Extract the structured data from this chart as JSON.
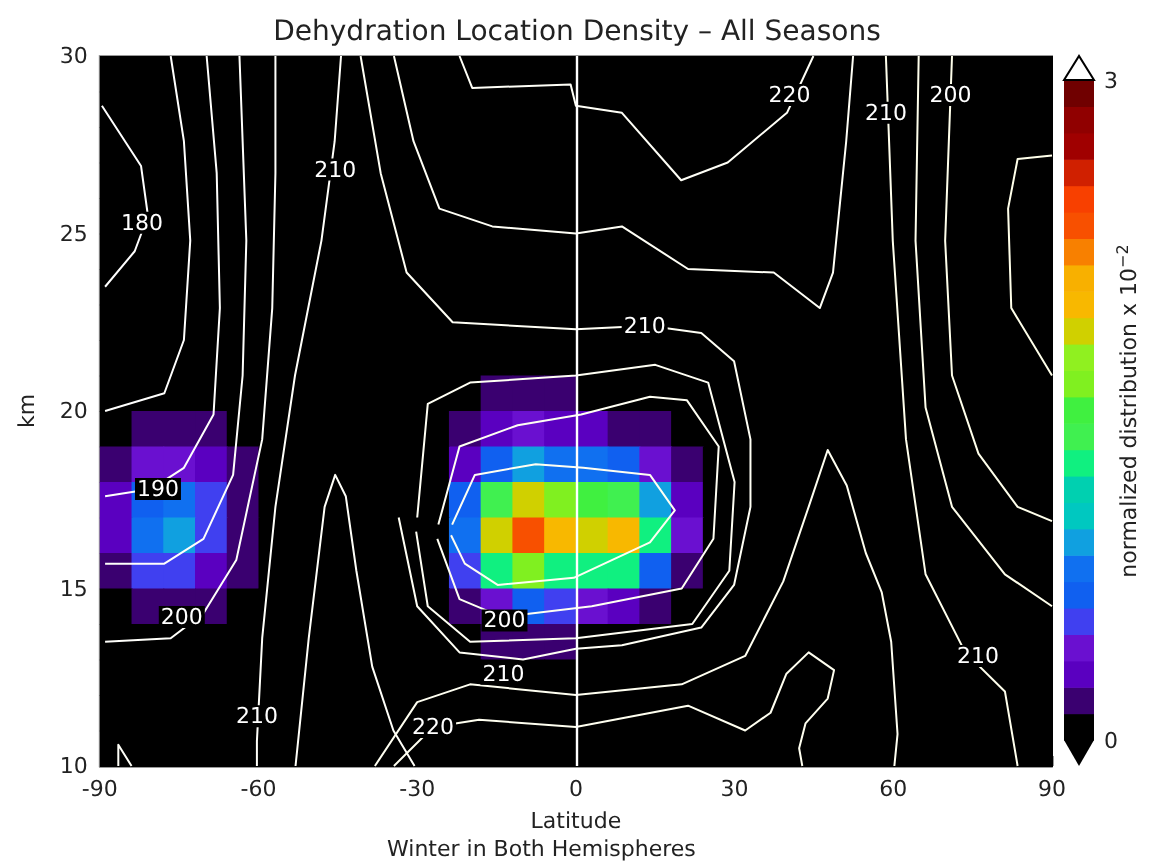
{
  "chart_data": {
    "type": "heatmap",
    "title": "Dehydration Location Density – All Seasons",
    "xlabel": "Latitude",
    "ylabel": "km",
    "clabel": "normalized distribution x 10$^{−2}$",
    "xlim": [
      -90,
      90
    ],
    "xticks": [
      -90,
      -60,
      -30,
      0,
      30,
      60,
      90
    ],
    "ylim": [
      10,
      30
    ],
    "yticks": [
      10,
      15,
      20,
      25,
      30
    ],
    "grid": false,
    "clim": [
      0,
      3
    ],
    "cticks": [
      0,
      3
    ],
    "colors": [
      "#000000",
      "#3a0070",
      "#5a00c0",
      "#6a10d0",
      "#4040f0",
      "#1060f0",
      "#1070f0",
      "#10a0e0",
      "#00c8c0",
      "#00d0b0",
      "#10f080",
      "#40f050",
      "#40f040",
      "#80f020",
      "#90f020",
      "#d0d000",
      "#f8b800",
      "#f8b000",
      "#f88000",
      "#f85000",
      "#f84000",
      "#d02000",
      "#a00000",
      "#900000",
      "#700000"
    ],
    "cells": [
      [
        0,
        0,
        0,
        0,
        0,
        0,
        0,
        0,
        0,
        0,
        0,
        0,
        0,
        0,
        0,
        0,
        0,
        0,
        0,
        0,
        0,
        0,
        0,
        0,
        0,
        0,
        0,
        0,
        0,
        0
      ],
      [
        0,
        0,
        0,
        0,
        0,
        0,
        0,
        0,
        0,
        0,
        0,
        0,
        0,
        0,
        0,
        0,
        0,
        0,
        0,
        0,
        0,
        0,
        0,
        0,
        0,
        0,
        0,
        0,
        0,
        0
      ],
      [
        0,
        0,
        0,
        0,
        0,
        0,
        0,
        0,
        0,
        0,
        0,
        0,
        0,
        0,
        0,
        0,
        0,
        0,
        0,
        0,
        0,
        0,
        0,
        0,
        0,
        0,
        0,
        0,
        0,
        0
      ],
      [
        0,
        0,
        0,
        0,
        0,
        0,
        0,
        0,
        0,
        0,
        0,
        0,
        0,
        0,
        0,
        0,
        0,
        0,
        0,
        0,
        0,
        0,
        0,
        0,
        0,
        0,
        0,
        0,
        0,
        0
      ],
      [
        0,
        0,
        0,
        0,
        0,
        0,
        0,
        0,
        0,
        0,
        0,
        0,
        0,
        0,
        0,
        0,
        0,
        0,
        0,
        0,
        0,
        0,
        0,
        0,
        0,
        0,
        0,
        0,
        0,
        0
      ],
      [
        0,
        0,
        0,
        0,
        0,
        0,
        0,
        0,
        0,
        0,
        0,
        0,
        0,
        0,
        0,
        0,
        0,
        0,
        0,
        0,
        0,
        0,
        0,
        0,
        0,
        0,
        0,
        0,
        0,
        0
      ],
      [
        0,
        0,
        0,
        0,
        0,
        0,
        0,
        0,
        0,
        0,
        0,
        0,
        0,
        0,
        0,
        0,
        0,
        0,
        0,
        0,
        0,
        0,
        0,
        0,
        0,
        0,
        0,
        0,
        0,
        0
      ],
      [
        0,
        0,
        0,
        0,
        0,
        0,
        0,
        0,
        0,
        0,
        0,
        0,
        0,
        0,
        0,
        0,
        0,
        0,
        0,
        0,
        0,
        0,
        0,
        0,
        0,
        0,
        0,
        0,
        0,
        0
      ],
      [
        0,
        0,
        0,
        0,
        0,
        0,
        0,
        0,
        0,
        0,
        0,
        0,
        0,
        0,
        0,
        0,
        0,
        0,
        0,
        0,
        0,
        0,
        0,
        0,
        0,
        0,
        0,
        0,
        0,
        0
      ],
      [
        0,
        0,
        0,
        0,
        0,
        0,
        0,
        0,
        0,
        0,
        0,
        0,
        0.15,
        0.2,
        0.15,
        0,
        0,
        0,
        0,
        0,
        0,
        0,
        0,
        0,
        0,
        0,
        0,
        0,
        0,
        0
      ],
      [
        0,
        0.15,
        0.2,
        0.15,
        0,
        0,
        0,
        0,
        0,
        0,
        0,
        0.15,
        0.3,
        0.4,
        0.3,
        0.3,
        0.2,
        0.15,
        0,
        0,
        0,
        0,
        0,
        0,
        0,
        0,
        0,
        0,
        0,
        0
      ],
      [
        0.2,
        0.4,
        0.4,
        0.3,
        0.15,
        0,
        0,
        0,
        0,
        0,
        0,
        0.3,
        0.7,
        0.9,
        0.8,
        0.8,
        0.6,
        0.4,
        0.15,
        0,
        0,
        0,
        0,
        0,
        0,
        0,
        0,
        0,
        0,
        0
      ],
      [
        0.3,
        0.7,
        0.8,
        0.5,
        0.2,
        0,
        0,
        0,
        0,
        0,
        0,
        0.6,
        1.4,
        1.8,
        1.6,
        1.5,
        1.4,
        0.9,
        0.3,
        0,
        0,
        0,
        0,
        0,
        0,
        0,
        0,
        0,
        0,
        0
      ],
      [
        0.3,
        0.8,
        0.9,
        0.5,
        0.2,
        0,
        0,
        0,
        0,
        0,
        0,
        0.8,
        1.8,
        2.3,
        2.0,
        1.9,
        2.0,
        1.2,
        0.4,
        0,
        0,
        0,
        0,
        0,
        0,
        0,
        0,
        0,
        0,
        0
      ],
      [
        0.2,
        0.5,
        0.5,
        0.3,
        0.15,
        0,
        0,
        0,
        0,
        0,
        0,
        0.5,
        1.2,
        1.6,
        1.3,
        1.3,
        1.2,
        0.7,
        0.2,
        0,
        0,
        0,
        0,
        0,
        0,
        0,
        0,
        0,
        0,
        0
      ],
      [
        0,
        0.15,
        0.2,
        0.15,
        0,
        0,
        0,
        0,
        0,
        0,
        0,
        0.2,
        0.4,
        0.6,
        0.5,
        0.4,
        0.3,
        0.2,
        0,
        0,
        0,
        0,
        0,
        0,
        0,
        0,
        0,
        0,
        0,
        0
      ],
      [
        0,
        0,
        0,
        0,
        0,
        0,
        0,
        0,
        0,
        0,
        0,
        0,
        0.15,
        0.15,
        0.15,
        0,
        0,
        0,
        0,
        0,
        0,
        0,
        0,
        0,
        0,
        0,
        0,
        0,
        0,
        0
      ],
      [
        0,
        0,
        0,
        0,
        0,
        0,
        0,
        0,
        0,
        0,
        0,
        0,
        0,
        0,
        0,
        0,
        0,
        0,
        0,
        0,
        0,
        0,
        0,
        0,
        0,
        0,
        0,
        0,
        0,
        0
      ],
      [
        0,
        0,
        0,
        0,
        0,
        0,
        0,
        0,
        0,
        0,
        0,
        0,
        0,
        0,
        0,
        0,
        0,
        0,
        0,
        0,
        0,
        0,
        0,
        0,
        0,
        0,
        0,
        0,
        0,
        0
      ],
      [
        0,
        0,
        0,
        0,
        0,
        0,
        0,
        0,
        0,
        0,
        0,
        0,
        0,
        0,
        0,
        0,
        0,
        0,
        0,
        0,
        0,
        0,
        0,
        0,
        0,
        0,
        0,
        0,
        0,
        0
      ]
    ],
    "series": [
      {
        "type": "line",
        "color": "#ffffff",
        "x": [
          -89.6,
          -82.2,
          -80.9,
          -83.4,
          -89
        ],
        "values": [
          28.6,
          26.9,
          25.5,
          24.5,
          23.5
        ]
      },
      {
        "type": "line",
        "color": "#fffffe",
        "x": [
          -76.6,
          -74.1,
          -72.9,
          -74.1,
          -77.8,
          -89
        ],
        "values": [
          30,
          27.6,
          24.8,
          22,
          20.5,
          20
        ]
      },
      {
        "type": "line",
        "color": "#fffffd",
        "x": [
          -69.8,
          -67.9,
          -67.3,
          -68.5,
          -74.1,
          -80.3,
          -89
        ],
        "values": [
          30,
          26.7,
          22.9,
          19.9,
          18.4,
          17.8,
          17.6
        ]
      },
      {
        "type": "line",
        "color": "#fffffc",
        "x": [
          -63.6,
          -62.3,
          -63,
          -64.8,
          -70.4,
          -77.8,
          -89
        ],
        "values": [
          30,
          24.8,
          21,
          18.2,
          16.4,
          15.7,
          15.7
        ]
      },
      {
        "type": "line",
        "color": "#fffffb",
        "x": [
          -56.8,
          -56.8,
          -57.4,
          -59.3,
          -64.2,
          -70.4,
          -76.6,
          -89
        ],
        "values": [
          30,
          26.7,
          22.9,
          19.2,
          15.8,
          14.3,
          13.6,
          13.5
        ]
      },
      {
        "type": "line",
        "color": "#fffffa",
        "x": [
          -44.4,
          -45.6,
          -48.1,
          -53.1,
          -56.8,
          -59.3,
          -60.3,
          -60.3
        ],
        "values": [
          30,
          27.6,
          24.8,
          21,
          17.3,
          13.6,
          10.7,
          10
        ]
      },
      {
        "type": "line",
        "color": "#fffff9",
        "x": [
          -53,
          -50.5,
          -47.5,
          -45.5,
          -43.5,
          -41.5,
          -38.5,
          -34.5,
          -30.5
        ],
        "values": [
          10,
          13.6,
          17.3,
          18.2,
          17.6,
          15.5,
          12.8,
          11,
          10
        ]
      },
      {
        "type": "line",
        "color": "#fffff8",
        "x": [
          -86.5,
          -86.5,
          -84
        ],
        "values": [
          10,
          10.6,
          10
        ]
      },
      {
        "type": "line",
        "color": "#fffff7",
        "x": [
          -22,
          -19.6,
          -1,
          0,
          8.7,
          19.9,
          28.7,
          39.9,
          44.9
        ],
        "values": [
          30,
          29.1,
          29.2,
          28.6,
          28.4,
          26.5,
          27,
          28.4,
          30
        ]
      },
      {
        "type": "line",
        "color": "#fffff6",
        "x": [
          -34.4,
          -30.7,
          -25.8,
          -15.8,
          0,
          8.7,
          21.2,
          37.4,
          46.1,
          48.6,
          51.1,
          52.4
        ],
        "values": [
          30,
          27.6,
          25.7,
          25.2,
          25,
          25.2,
          24,
          23.9,
          22.9,
          23.9,
          27.6,
          30
        ]
      },
      {
        "type": "line",
        "color": "#fffff5",
        "x": [
          -40.7,
          -36.9,
          -32,
          -23.3,
          0,
          13.7,
          23.7,
          29.9,
          33,
          33,
          29.9,
          23.7,
          8.7,
          0,
          -10,
          -22,
          -30,
          -33.5
        ],
        "values": [
          30,
          26.7,
          23.9,
          22.5,
          22.3,
          22.4,
          22.2,
          21.4,
          19.2,
          17.3,
          15.1,
          13.9,
          13.4,
          13.3,
          13,
          13.2,
          14.5,
          17
        ]
      },
      {
        "type": "line",
        "color": "#fffff4",
        "x": [
          -30,
          -28,
          -20,
          -10,
          0,
          15,
          25,
          30,
          29,
          22,
          0,
          -20,
          -28,
          -30.2
        ],
        "values": [
          17,
          20.2,
          20.8,
          20.9,
          21,
          21.3,
          20.8,
          18,
          15.5,
          14,
          13.6,
          13.5,
          14.5,
          16.6
        ]
      },
      {
        "type": "line",
        "color": "#fffff3",
        "x": [
          -26,
          -22,
          -11,
          1,
          14,
          21,
          27,
          26,
          20,
          3,
          -14,
          -22,
          -26.2
        ],
        "values": [
          16.8,
          19,
          19.6,
          19.9,
          20.4,
          20.3,
          19,
          16.4,
          15,
          14.5,
          14.2,
          14.7,
          16.4
        ]
      },
      {
        "type": "line",
        "color": "#fffff2",
        "x": [
          -23.4,
          -19.1,
          -7.6,
          1.4,
          14,
          18.7,
          14,
          -0.4,
          -14.8,
          -21,
          -23.6
        ],
        "values": [
          16.8,
          18.2,
          18.5,
          18.4,
          18.2,
          17.2,
          16.3,
          15.3,
          15.1,
          15.7,
          16.5
        ]
      },
      {
        "type": "line",
        "color": "#fffff1",
        "x": [
          -38,
          -30,
          -20,
          0,
          20,
          32,
          39.2,
          44,
          47.6,
          51.2,
          54.8,
          57.8,
          59.6,
          60.8,
          60.2
        ],
        "values": [
          10,
          11.8,
          12.3,
          12,
          12.3,
          13.1,
          15.2,
          17.3,
          18.9,
          17.9,
          16,
          14.9,
          13.5,
          10.9,
          10
        ]
      },
      {
        "type": "line",
        "color": "#fffff0",
        "x": [
          -34.4,
          -27,
          -18.3,
          0,
          21.2,
          32,
          36.8,
          39.8,
          44,
          48.8,
          47.6,
          43.4,
          42.2,
          42.8
        ],
        "values": [
          10,
          11.1,
          11.3,
          11.1,
          11.7,
          11,
          11.5,
          12.6,
          13.2,
          12.7,
          11.9,
          11.2,
          10.5,
          10
        ]
      },
      {
        "type": "line",
        "color": "#ffffed",
        "x": [
          58.6,
          59.9,
          62.4,
          66.1,
          73.6,
          81.1,
          83.5
        ],
        "values": [
          30,
          24.8,
          19.2,
          15.4,
          13.2,
          12.1,
          10
        ]
      },
      {
        "type": "line",
        "color": "#ffffec",
        "x": [
          64.8,
          64.2,
          66.1,
          71.1,
          81.1,
          90
        ],
        "values": [
          30,
          24.8,
          20.1,
          17.3,
          15.4,
          14.5
        ]
      },
      {
        "type": "line",
        "color": "#ffffeb",
        "x": [
          71.1,
          69.8,
          71.1,
          76.1,
          83.5,
          90
        ],
        "values": [
          30,
          24.8,
          21,
          18.8,
          17.3,
          16.9
        ]
      },
      {
        "type": "line",
        "color": "#ffffea",
        "x": [
          90,
          83.5,
          81.7,
          82.3,
          90
        ],
        "values": [
          27.2,
          27.1,
          25.7,
          22.9,
          21
        ]
      }
    ],
    "ref_lines": [
      {
        "axis": "x",
        "value": 0,
        "color": "#ffffff"
      }
    ],
    "annotations": [
      {
        "text": "180",
        "x": -82,
        "y": 25.3
      },
      {
        "text": "190",
        "x": -79,
        "y": 17.8
      },
      {
        "text": "200",
        "x": -74.5,
        "y": 14.2
      },
      {
        "text": "210",
        "x": -45.5,
        "y": 26.8
      },
      {
        "text": "210",
        "x": -60.3,
        "y": 11.4
      },
      {
        "text": "200",
        "x": -13.5,
        "y": 14.1
      },
      {
        "text": "210",
        "x": -13.7,
        "y": 12.6
      },
      {
        "text": "220",
        "x": -27,
        "y": 11.1
      },
      {
        "text": "210",
        "x": 13,
        "y": 22.4
      },
      {
        "text": "220",
        "x": 40.4,
        "y": 28.9
      },
      {
        "text": "210",
        "x": 58.6,
        "y": 28.4
      },
      {
        "text": "200",
        "x": 70.8,
        "y": 28.9
      },
      {
        "text": "210",
        "x": 76,
        "y": 13.1
      },
      "Winter in Both Hemispheres"
    ]
  }
}
